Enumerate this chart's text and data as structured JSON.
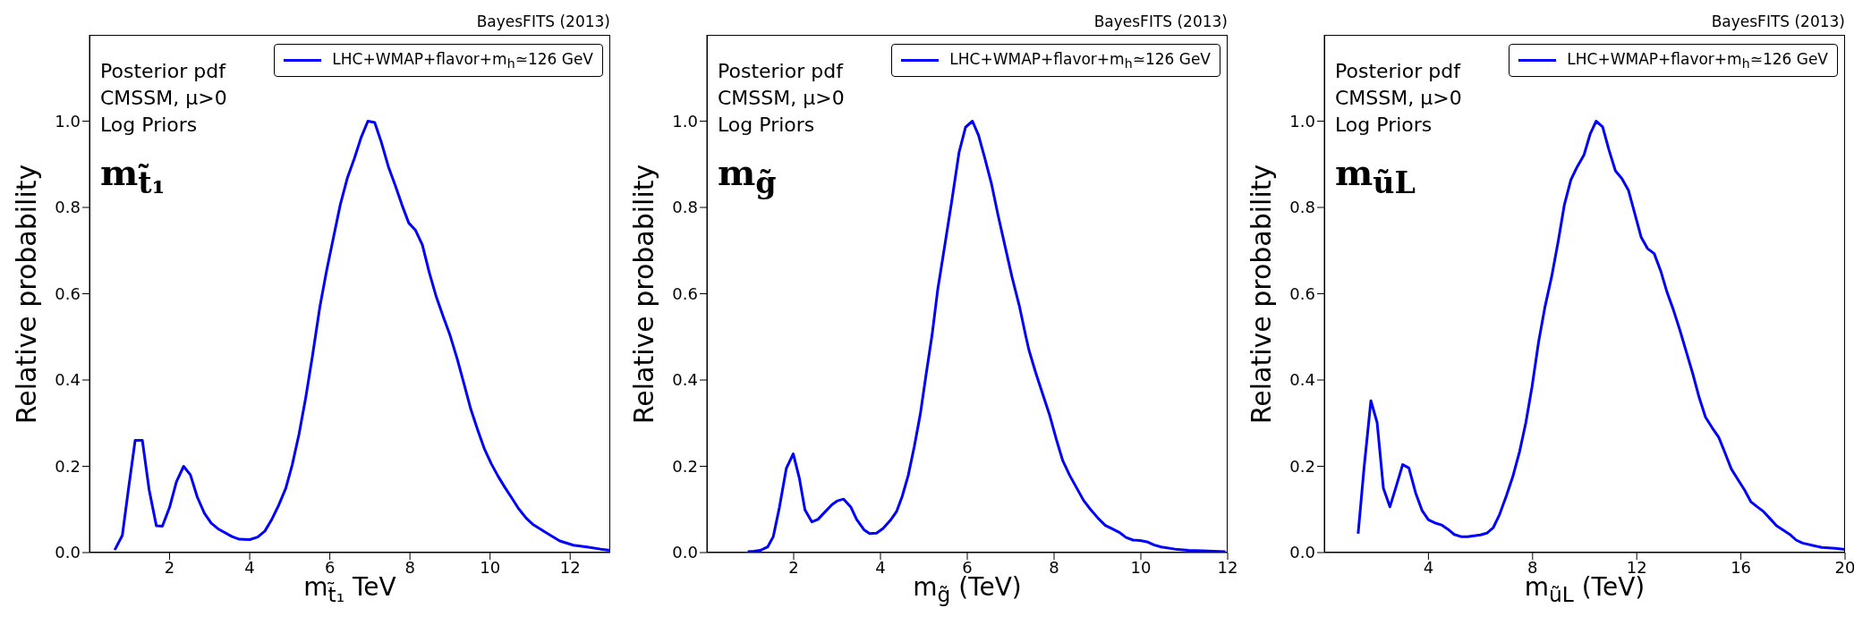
{
  "chart_data": [
    {
      "type": "line",
      "xlabel": "m$_{t̃₁}$ TeV",
      "ylabel": "Relative probability",
      "legend": "top right",
      "xlim": [
        0,
        13
      ],
      "xticks": [
        2,
        4,
        6,
        8,
        10,
        12
      ],
      "ylim": [
        0,
        1.2
      ],
      "yticks": [
        {
          "value": 0,
          "label": "0.0"
        },
        {
          "value": 0.2,
          "label": "0.2"
        },
        {
          "value": 0.4,
          "label": "0.4"
        },
        {
          "value": 0.6,
          "label": "0.6"
        },
        {
          "value": 0.8,
          "label": "0.8"
        },
        {
          "value": 1,
          "label": "1.0"
        }
      ],
      "annotations": [
        "Posterior pdf",
        "CMSSM, μ>0",
        "Log Priors",
        "m$_{t̃₁}$",
        "BayesFITS (2013)"
      ],
      "x": [
        0.63,
        0.82,
        0.97,
        1.14,
        1.32,
        1.49,
        1.67,
        1.82,
        2.0,
        2.17,
        2.35,
        2.52,
        2.69,
        2.87,
        3.04,
        3.21,
        3.56,
        3.74,
        4.0,
        4.2,
        4.38,
        4.54,
        4.72,
        4.9,
        5.06,
        5.23,
        5.4,
        5.57,
        5.75,
        5.92,
        6.09,
        6.26,
        6.44,
        6.61,
        6.78,
        6.95,
        7.12,
        7.28,
        7.46,
        7.63,
        7.8,
        7.97,
        8.14,
        8.31,
        8.48,
        8.66,
        8.83,
        9.0,
        9.18,
        9.35,
        9.52,
        9.7,
        9.86,
        10.03,
        10.2,
        10.37,
        10.54,
        10.71,
        10.9,
        11.06,
        11.4,
        11.74,
        12.08,
        12.42,
        12.76,
        13.0
      ],
      "series": [
        {
          "name": "LHC+WMAP+flavor+m$_{h}$≃126 GeV",
          "color": "#0000ff",
          "values": [
            0.006,
            0.04,
            0.145,
            0.26,
            0.26,
            0.145,
            0.062,
            0.061,
            0.105,
            0.164,
            0.2,
            0.18,
            0.129,
            0.091,
            0.068,
            0.055,
            0.037,
            0.031,
            0.03,
            0.036,
            0.05,
            0.075,
            0.109,
            0.149,
            0.203,
            0.274,
            0.36,
            0.458,
            0.569,
            0.654,
            0.73,
            0.806,
            0.869,
            0.913,
            0.962,
            1.0,
            0.997,
            0.953,
            0.895,
            0.852,
            0.806,
            0.764,
            0.747,
            0.713,
            0.65,
            0.592,
            0.547,
            0.504,
            0.449,
            0.391,
            0.332,
            0.282,
            0.24,
            0.206,
            0.177,
            0.151,
            0.127,
            0.102,
            0.08,
            0.066,
            0.046,
            0.027,
            0.017,
            0.013,
            0.008,
            0.005
          ]
        }
      ]
    },
    {
      "type": "line",
      "xlabel": "m$_{g̃}$ (TeV)",
      "ylabel": "Relative probability",
      "legend": "top right",
      "xlim": [
        0,
        12
      ],
      "xticks": [
        2,
        4,
        6,
        8,
        10,
        12
      ],
      "ylim": [
        0,
        1.2
      ],
      "yticks": [
        {
          "value": 0,
          "label": "0.0"
        },
        {
          "value": 0.2,
          "label": "0.2"
        },
        {
          "value": 0.4,
          "label": "0.4"
        },
        {
          "value": 0.6,
          "label": "0.6"
        },
        {
          "value": 0.8,
          "label": "0.8"
        },
        {
          "value": 1,
          "label": "1.0"
        }
      ],
      "annotations": [
        "Posterior pdf",
        "CMSSM, μ>0",
        "Log Priors",
        "m$_{g̃}$",
        "BayesFITS (2013)"
      ],
      "x": [
        0.94,
        1.08,
        1.23,
        1.4,
        1.53,
        1.67,
        1.83,
        1.99,
        2.13,
        2.26,
        2.42,
        2.56,
        2.72,
        2.88,
        3.01,
        3.15,
        3.32,
        3.45,
        3.62,
        3.75,
        3.91,
        4.06,
        4.23,
        4.37,
        4.5,
        4.64,
        4.78,
        4.92,
        5.05,
        5.19,
        5.32,
        5.48,
        5.64,
        5.81,
        5.96,
        6.12,
        6.26,
        6.4,
        6.56,
        6.71,
        6.88,
        7.03,
        7.2,
        7.35,
        7.42,
        7.58,
        7.74,
        7.9,
        8.06,
        8.2,
        8.36,
        8.52,
        8.68,
        8.84,
        9.02,
        9.18,
        9.34,
        9.5,
        9.66,
        9.82,
        9.98,
        10.14,
        10.3,
        10.47,
        10.79,
        11.1,
        11.42,
        11.95
      ],
      "series": [
        {
          "name": "LHC+WMAP+flavor+m$_{h}$≃126 GeV",
          "color": "#0000ff",
          "values": [
            0.002,
            0.003,
            0.005,
            0.013,
            0.037,
            0.104,
            0.195,
            0.229,
            0.173,
            0.099,
            0.071,
            0.077,
            0.094,
            0.111,
            0.12,
            0.124,
            0.105,
            0.077,
            0.053,
            0.044,
            0.045,
            0.056,
            0.075,
            0.095,
            0.13,
            0.179,
            0.246,
            0.322,
            0.412,
            0.505,
            0.61,
            0.711,
            0.813,
            0.927,
            0.986,
            1.0,
            0.967,
            0.916,
            0.854,
            0.782,
            0.706,
            0.639,
            0.572,
            0.501,
            0.47,
            0.416,
            0.367,
            0.318,
            0.26,
            0.213,
            0.179,
            0.15,
            0.121,
            0.1,
            0.079,
            0.063,
            0.055,
            0.047,
            0.035,
            0.029,
            0.028,
            0.025,
            0.018,
            0.013,
            0.008,
            0.005,
            0.004,
            0.002
          ]
        }
      ]
    },
    {
      "type": "line",
      "xlabel": "m$_{ũL}$ (TeV)",
      "ylabel": "Relative probability",
      "legend": "top right",
      "xlim": [
        0,
        20
      ],
      "xticks": [
        4,
        8,
        12,
        16,
        20
      ],
      "ylim": [
        0,
        1.2
      ],
      "yticks": [
        {
          "value": 0,
          "label": "0.0"
        },
        {
          "value": 0.2,
          "label": "0.2"
        },
        {
          "value": 0.4,
          "label": "0.4"
        },
        {
          "value": 0.6,
          "label": "0.6"
        },
        {
          "value": 0.8,
          "label": "0.8"
        },
        {
          "value": 1,
          "label": "1.0"
        }
      ],
      "annotations": [
        "Posterior pdf",
        "CMSSM, μ>0",
        "Log Priors",
        "m$_{ũL}$",
        "BayesFITS (2013)"
      ],
      "x": [
        1.3,
        1.53,
        1.79,
        2.03,
        2.27,
        2.52,
        2.76,
        3.01,
        3.25,
        3.51,
        3.76,
        4.0,
        4.24,
        4.5,
        4.75,
        4.99,
        5.25,
        5.5,
        6.0,
        6.24,
        6.49,
        6.73,
        6.99,
        7.24,
        7.5,
        7.74,
        7.98,
        8.23,
        8.47,
        8.73,
        8.98,
        9.22,
        9.47,
        9.71,
        9.97,
        10.21,
        10.44,
        10.69,
        10.93,
        11.18,
        11.43,
        11.68,
        11.92,
        12.17,
        12.41,
        12.67,
        12.92,
        13.16,
        13.4,
        13.66,
        13.91,
        14.15,
        14.4,
        14.64,
        14.9,
        15.15,
        15.39,
        15.63,
        15.89,
        16.14,
        16.38,
        16.63,
        16.87,
        17.13,
        17.37,
        17.88,
        18.12,
        18.37,
        18.87,
        19.11,
        19.62,
        20.0
      ],
      "series": [
        {
          "name": "LHC+WMAP+flavor+m$_{h}$≃126 GeV",
          "color": "#0000ff",
          "values": [
            0.044,
            0.198,
            0.352,
            0.301,
            0.149,
            0.106,
            0.153,
            0.204,
            0.196,
            0.138,
            0.097,
            0.076,
            0.069,
            0.064,
            0.054,
            0.042,
            0.037,
            0.037,
            0.041,
            0.045,
            0.058,
            0.088,
            0.131,
            0.176,
            0.234,
            0.301,
            0.385,
            0.488,
            0.568,
            0.639,
            0.72,
            0.806,
            0.864,
            0.894,
            0.921,
            0.97,
            1.0,
            0.987,
            0.934,
            0.885,
            0.867,
            0.84,
            0.787,
            0.731,
            0.705,
            0.693,
            0.653,
            0.604,
            0.564,
            0.515,
            0.464,
            0.415,
            0.359,
            0.314,
            0.289,
            0.267,
            0.231,
            0.194,
            0.169,
            0.145,
            0.118,
            0.106,
            0.095,
            0.078,
            0.062,
            0.042,
            0.029,
            0.022,
            0.015,
            0.012,
            0.01,
            0.007
          ]
        }
      ]
    }
  ]
}
